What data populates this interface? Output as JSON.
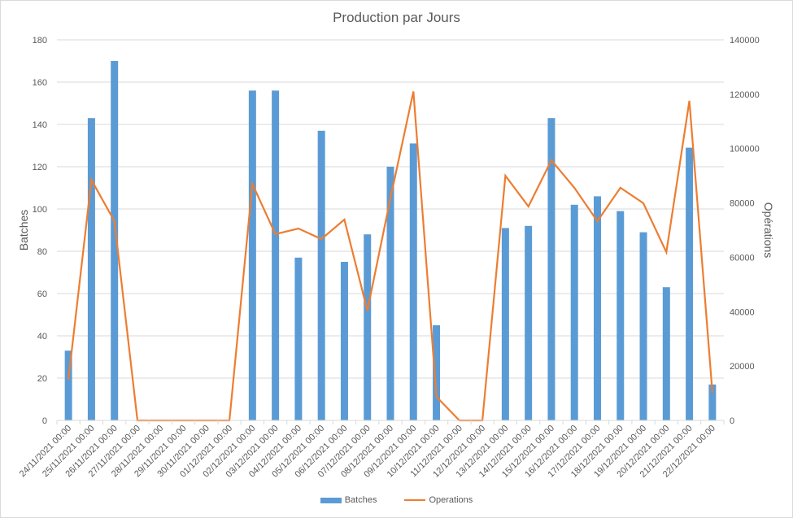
{
  "chart_data": {
    "type": "bar+line",
    "title": "Production par Jours",
    "xlabel": "",
    "ylabel": "Batches",
    "y2label": "Opérations",
    "ylim": [
      0,
      180
    ],
    "y2lim": [
      0,
      140000
    ],
    "yticks": [
      0,
      20,
      40,
      60,
      80,
      100,
      120,
      140,
      160,
      180
    ],
    "y2ticks": [
      0,
      20000,
      40000,
      60000,
      80000,
      100000,
      120000,
      140000
    ],
    "grid": true,
    "legend_position": "bottom",
    "categories": [
      "24/11/2021 00:00",
      "25/11/2021 00:00",
      "26/11/2021 00:00",
      "27/11/2021 00:00",
      "28/11/2021 00:00",
      "29/11/2021 00:00",
      "30/11/2021 00:00",
      "01/12/2021 00:00",
      "02/12/2021 00:00",
      "03/12/2021 00:00",
      "04/12/2021 00:00",
      "05/12/2021 00:00",
      "06/12/2021 00:00",
      "07/12/2021 00:00",
      "08/12/2021 00:00",
      "09/12/2021 00:00",
      "10/12/2021 00:00",
      "11/12/2021 00:00",
      "12/12/2021 00:00",
      "13/12/2021 00:00",
      "14/12/2021 00:00",
      "15/12/2021 00:00",
      "16/12/2021 00:00",
      "17/12/2021 00:00",
      "18/12/2021 00:00",
      "19/12/2021 00:00",
      "20/12/2021 00:00",
      "21/12/2021 00:00",
      "22/12/2021 00:00"
    ],
    "series": [
      {
        "name": "Batches",
        "type": "bar",
        "axis": "left",
        "color": "#5b9bd5",
        "values": [
          33,
          143,
          170,
          0,
          0,
          0,
          0,
          0,
          156,
          156,
          77,
          137,
          75,
          88,
          120,
          131,
          45,
          0,
          0,
          91,
          92,
          143,
          102,
          106,
          99,
          89,
          63,
          129,
          17
        ]
      },
      {
        "name": "Operations",
        "type": "line",
        "axis": "right",
        "color": "#ed7d31",
        "values": [
          15000,
          88500,
          73300,
          0,
          0,
          0,
          0,
          0,
          87000,
          68500,
          70600,
          66700,
          73900,
          40400,
          81700,
          121000,
          8700,
          0,
          0,
          90000,
          78700,
          95700,
          85600,
          73300,
          85600,
          79900,
          61900,
          117600,
          10200
        ]
      }
    ]
  },
  "legend": {
    "batches_label": "Batches",
    "operations_label": "Operations"
  }
}
